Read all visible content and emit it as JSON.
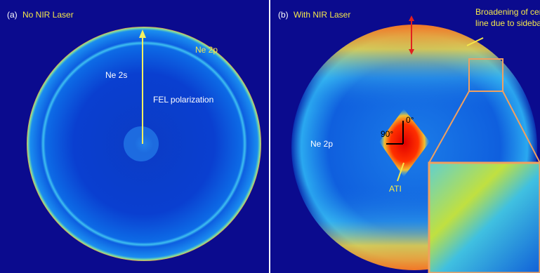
{
  "panels": [
    {
      "label": "(a)",
      "title": "No NIR Laser",
      "annotations": {
        "outer_ring": "Ne 2p",
        "inner_ring": "Ne 2s",
        "arrow": "FEL polarization"
      }
    },
    {
      "label": "(b)",
      "title": "With NIR Laser",
      "annotations": {
        "broadening": [
          "Broadening of central",
          "line due to sidebands"
        ],
        "ring": "Ne 2p",
        "angle_0": "0°",
        "angle_90": "90°",
        "center": "ATI"
      }
    }
  ]
}
